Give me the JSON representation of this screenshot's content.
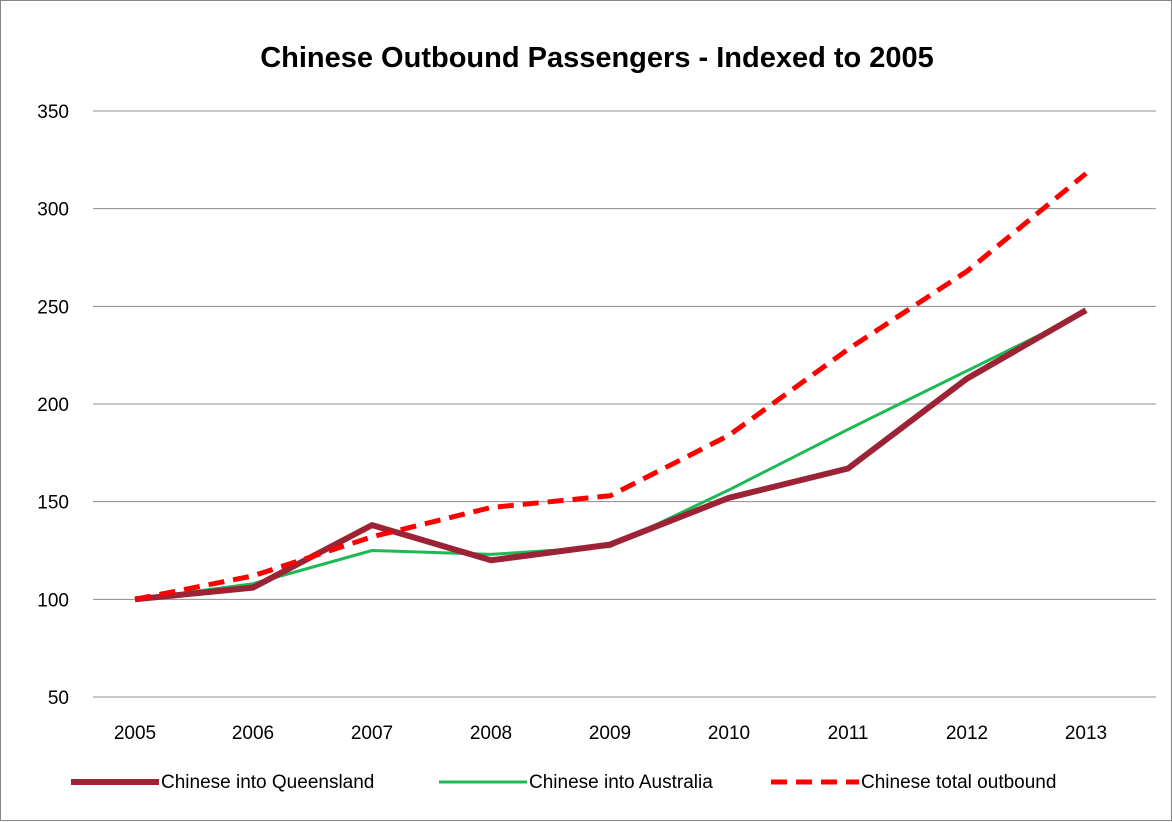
{
  "chart_data": {
    "type": "line",
    "title": "Chinese Outbound Passengers - Indexed to 2005",
    "xlabel": "",
    "ylabel": "",
    "categories": [
      "2005",
      "2006",
      "2007",
      "2008",
      "2009",
      "2010",
      "2011",
      "2012",
      "2013"
    ],
    "ylim": [
      50,
      350
    ],
    "yticks": [
      50,
      100,
      150,
      200,
      250,
      300,
      350
    ],
    "grid": "horizontal",
    "legend_position": "bottom",
    "series": [
      {
        "name": "Chinese into Queensland",
        "values": [
          100,
          106,
          138,
          120,
          128,
          152,
          167,
          213,
          248
        ],
        "color": "#9B2335",
        "style": "solid-thick"
      },
      {
        "name": "Chinese into Australia",
        "values": [
          100,
          108,
          125,
          123,
          127,
          156,
          187,
          217,
          247
        ],
        "color": "#1DB954",
        "style": "solid-thin"
      },
      {
        "name": "Chinese total outbound",
        "values": [
          100,
          112,
          132,
          147,
          153,
          184,
          228,
          268,
          318
        ],
        "color": "#FF0000",
        "style": "dashed"
      }
    ]
  }
}
